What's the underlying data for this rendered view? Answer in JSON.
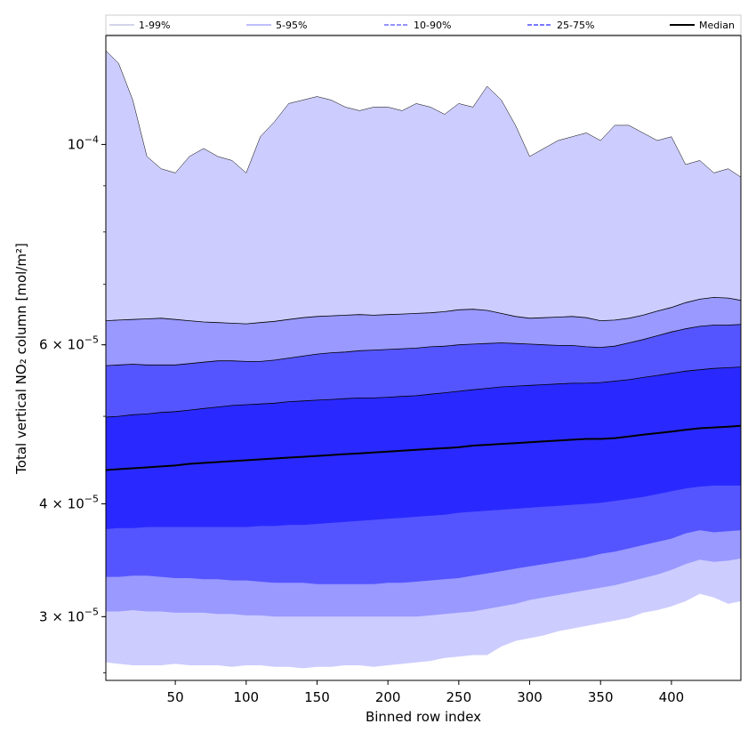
{
  "chart_data": {
    "type": "area",
    "xlabel": "Binned row index",
    "ylabel": "Total vertical NO₂ column [mol/m²]",
    "xlim": [
      1,
      449
    ],
    "ylim": [
      2.55e-05,
      0.000132
    ],
    "yscale": "log",
    "grid": false,
    "legend_placement": "top",
    "x_ticks": [
      50,
      100,
      150,
      200,
      250,
      300,
      350,
      400
    ],
    "y_tick_labels": [
      {
        "value": 0.0001,
        "base": "10",
        "exp": "−4"
      },
      {
        "value": 6e-05,
        "base": "6 × 10",
        "exp": "−5"
      },
      {
        "value": 4e-05,
        "base": "4 × 10",
        "exp": "−5"
      },
      {
        "value": 3e-05,
        "base": "3 × 10",
        "exp": "−5"
      }
    ],
    "y_minor_ticks": [
      2.6e-05,
      3e-05,
      4e-05,
      5e-05,
      6e-05,
      7e-05,
      8e-05,
      9e-05
    ],
    "x": [
      1,
      10,
      20,
      30,
      40,
      50,
      60,
      70,
      80,
      90,
      100,
      110,
      120,
      130,
      140,
      150,
      160,
      170,
      180,
      190,
      200,
      210,
      220,
      230,
      240,
      250,
      260,
      270,
      280,
      290,
      300,
      310,
      320,
      330,
      340,
      350,
      360,
      370,
      380,
      390,
      400,
      410,
      420,
      430,
      440,
      449
    ],
    "series": [
      {
        "name": "1-99%",
        "color": "#ccccff",
        "style": "solid",
        "lower": [
          2.67e-05,
          2.66e-05,
          2.65e-05,
          2.65e-05,
          2.65e-05,
          2.66e-05,
          2.65e-05,
          2.65e-05,
          2.65e-05,
          2.64e-05,
          2.65e-05,
          2.65e-05,
          2.64e-05,
          2.64e-05,
          2.63e-05,
          2.64e-05,
          2.64e-05,
          2.65e-05,
          2.65e-05,
          2.64e-05,
          2.65e-05,
          2.66e-05,
          2.67e-05,
          2.68e-05,
          2.7e-05,
          2.71e-05,
          2.72e-05,
          2.72e-05,
          2.78e-05,
          2.82e-05,
          2.84e-05,
          2.86e-05,
          2.89e-05,
          2.91e-05,
          2.93e-05,
          2.95e-05,
          2.97e-05,
          2.99e-05,
          3.03e-05,
          3.05e-05,
          3.08e-05,
          3.12e-05,
          3.18e-05,
          3.15e-05,
          3.1e-05,
          3.12e-05
        ],
        "upper": [
          0.000127,
          0.000123,
          0.000112,
          9.7e-05,
          9.4e-05,
          9.3e-05,
          9.7e-05,
          9.9e-05,
          9.7e-05,
          9.6e-05,
          9.3e-05,
          0.000102,
          0.000106,
          0.000111,
          0.000112,
          0.000113,
          0.000112,
          0.00011,
          0.000109,
          0.00011,
          0.00011,
          0.000109,
          0.000111,
          0.00011,
          0.000108,
          0.000111,
          0.00011,
          0.000116,
          0.000112,
          0.000105,
          9.7e-05,
          9.9e-05,
          0.000101,
          0.000102,
          0.000103,
          0.000101,
          0.000105,
          0.000105,
          0.000103,
          0.000101,
          0.000102,
          9.5e-05,
          9.6e-05,
          9.3e-05,
          9.4e-05,
          9.2e-05
        ]
      },
      {
        "name": "5-95%",
        "color": "#9999ff",
        "style": "solid",
        "lower": [
          3.04e-05,
          3.04e-05,
          3.05e-05,
          3.04e-05,
          3.04e-05,
          3.03e-05,
          3.03e-05,
          3.03e-05,
          3.02e-05,
          3.02e-05,
          3.01e-05,
          3.01e-05,
          3e-05,
          3e-05,
          3e-05,
          3e-05,
          3e-05,
          3e-05,
          3e-05,
          3e-05,
          3e-05,
          3e-05,
          3e-05,
          3.01e-05,
          3.02e-05,
          3.03e-05,
          3.04e-05,
          3.06e-05,
          3.08e-05,
          3.1e-05,
          3.13e-05,
          3.15e-05,
          3.17e-05,
          3.19e-05,
          3.21e-05,
          3.23e-05,
          3.25e-05,
          3.28e-05,
          3.31e-05,
          3.34e-05,
          3.38e-05,
          3.43e-05,
          3.47e-05,
          3.45e-05,
          3.46e-05,
          3.48e-05
        ],
        "upper": [
          6.38e-05,
          6.39e-05,
          6.4e-05,
          6.41e-05,
          6.42e-05,
          6.4e-05,
          6.38e-05,
          6.36e-05,
          6.35e-05,
          6.34e-05,
          6.33e-05,
          6.35e-05,
          6.37e-05,
          6.4e-05,
          6.43e-05,
          6.45e-05,
          6.46e-05,
          6.47e-05,
          6.48e-05,
          6.47e-05,
          6.48e-05,
          6.49e-05,
          6.5e-05,
          6.51e-05,
          6.53e-05,
          6.56e-05,
          6.57e-05,
          6.55e-05,
          6.5e-05,
          6.45e-05,
          6.42e-05,
          6.43e-05,
          6.44e-05,
          6.45e-05,
          6.43e-05,
          6.38e-05,
          6.39e-05,
          6.42e-05,
          6.47e-05,
          6.54e-05,
          6.6e-05,
          6.68e-05,
          6.74e-05,
          6.77e-05,
          6.76e-05,
          6.72e-05
        ]
      },
      {
        "name": "10-90%",
        "color": "#5555ff",
        "style": "dashed",
        "lower": [
          3.32e-05,
          3.32e-05,
          3.33e-05,
          3.33e-05,
          3.32e-05,
          3.31e-05,
          3.31e-05,
          3.3e-05,
          3.3e-05,
          3.29e-05,
          3.29e-05,
          3.28e-05,
          3.27e-05,
          3.27e-05,
          3.27e-05,
          3.26e-05,
          3.26e-05,
          3.26e-05,
          3.26e-05,
          3.26e-05,
          3.27e-05,
          3.27e-05,
          3.28e-05,
          3.29e-05,
          3.3e-05,
          3.31e-05,
          3.33e-05,
          3.35e-05,
          3.37e-05,
          3.39e-05,
          3.41e-05,
          3.43e-05,
          3.45e-05,
          3.47e-05,
          3.49e-05,
          3.52e-05,
          3.54e-05,
          3.57e-05,
          3.6e-05,
          3.63e-05,
          3.66e-05,
          3.71e-05,
          3.74e-05,
          3.72e-05,
          3.73e-05,
          3.74e-05
        ],
        "upper": [
          5.69e-05,
          5.7e-05,
          5.71e-05,
          5.7e-05,
          5.7e-05,
          5.7e-05,
          5.72e-05,
          5.74e-05,
          5.76e-05,
          5.76e-05,
          5.75e-05,
          5.75e-05,
          5.77e-05,
          5.8e-05,
          5.83e-05,
          5.86e-05,
          5.88e-05,
          5.89e-05,
          5.91e-05,
          5.92e-05,
          5.93e-05,
          5.94e-05,
          5.95e-05,
          5.97e-05,
          5.98e-05,
          6e-05,
          6.01e-05,
          6.02e-05,
          6.03e-05,
          6.02e-05,
          6.01e-05,
          6e-05,
          5.99e-05,
          5.99e-05,
          5.97e-05,
          5.96e-05,
          5.98e-05,
          6.03e-05,
          6.08e-05,
          6.14e-05,
          6.2e-05,
          6.25e-05,
          6.29e-05,
          6.31e-05,
          6.31e-05,
          6.32e-05
        ]
      },
      {
        "name": "25-75%",
        "color": "#2929ff",
        "style": "dashed",
        "lower": [
          3.75e-05,
          3.76e-05,
          3.76e-05,
          3.77e-05,
          3.77e-05,
          3.77e-05,
          3.77e-05,
          3.77e-05,
          3.77e-05,
          3.77e-05,
          3.77e-05,
          3.78e-05,
          3.78e-05,
          3.79e-05,
          3.79e-05,
          3.8e-05,
          3.81e-05,
          3.82e-05,
          3.83e-05,
          3.84e-05,
          3.85e-05,
          3.86e-05,
          3.87e-05,
          3.88e-05,
          3.89e-05,
          3.91e-05,
          3.92e-05,
          3.93e-05,
          3.94e-05,
          3.95e-05,
          3.96e-05,
          3.97e-05,
          3.98e-05,
          3.99e-05,
          4e-05,
          4.01e-05,
          4.03e-05,
          4.05e-05,
          4.07e-05,
          4.1e-05,
          4.13e-05,
          4.16e-05,
          4.18e-05,
          4.19e-05,
          4.19e-05,
          4.19e-05
        ],
        "upper": [
          4.99e-05,
          5e-05,
          5.02e-05,
          5.03e-05,
          5.05e-05,
          5.06e-05,
          5.08e-05,
          5.1e-05,
          5.12e-05,
          5.14e-05,
          5.15e-05,
          5.16e-05,
          5.17e-05,
          5.19e-05,
          5.2e-05,
          5.21e-05,
          5.22e-05,
          5.23e-05,
          5.24e-05,
          5.24e-05,
          5.25e-05,
          5.26e-05,
          5.27e-05,
          5.29e-05,
          5.31e-05,
          5.33e-05,
          5.35e-05,
          5.37e-05,
          5.39e-05,
          5.4e-05,
          5.41e-05,
          5.42e-05,
          5.43e-05,
          5.44e-05,
          5.44e-05,
          5.45e-05,
          5.47e-05,
          5.49e-05,
          5.52e-05,
          5.55e-05,
          5.58e-05,
          5.61e-05,
          5.63e-05,
          5.65e-05,
          5.66e-05,
          5.67e-05
        ]
      },
      {
        "name": "Median",
        "color": "#000000",
        "style": "solid",
        "values": [
          4.36e-05,
          4.37e-05,
          4.38e-05,
          4.39e-05,
          4.4e-05,
          4.41e-05,
          4.43e-05,
          4.44e-05,
          4.45e-05,
          4.46e-05,
          4.47e-05,
          4.48e-05,
          4.49e-05,
          4.5e-05,
          4.51e-05,
          4.52e-05,
          4.53e-05,
          4.54e-05,
          4.55e-05,
          4.56e-05,
          4.57e-05,
          4.58e-05,
          4.59e-05,
          4.6e-05,
          4.61e-05,
          4.62e-05,
          4.64e-05,
          4.65e-05,
          4.66e-05,
          4.67e-05,
          4.68e-05,
          4.69e-05,
          4.7e-05,
          4.71e-05,
          4.72e-05,
          4.72e-05,
          4.73e-05,
          4.75e-05,
          4.77e-05,
          4.79e-05,
          4.81e-05,
          4.83e-05,
          4.85e-05,
          4.86e-05,
          4.87e-05,
          4.88e-05
        ]
      }
    ]
  }
}
